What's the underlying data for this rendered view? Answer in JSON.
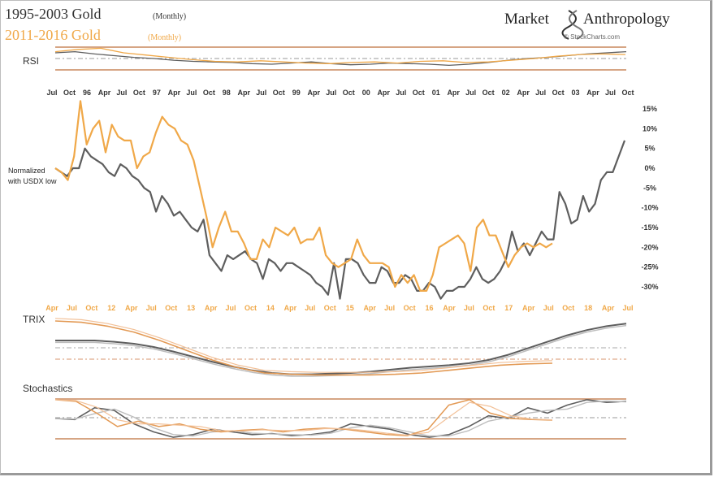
{
  "header": {
    "title_1": "1995-2003 Gold",
    "title_1_suffix": "(Monthly)",
    "title_2": "2011-2016  Gold",
    "title_2_suffix": "(Monthly)",
    "brand": "Market",
    "brand_2": "Anthropology",
    "credit": "© StockCharts.com"
  },
  "colors": {
    "gold": "#f0a848",
    "gray": "#5e5e5e",
    "light_gray": "#bdbdbd",
    "band": "#c8875c",
    "label": "#333333"
  },
  "chart_data": [
    {
      "type": "line",
      "panel": "RSI",
      "title": "RSI",
      "series": [
        {
          "name": "1995-2003 Gold",
          "values": [
            60,
            62,
            58,
            55,
            52,
            50,
            47,
            45,
            44,
            43,
            41,
            40,
            42,
            44,
            41,
            39,
            40,
            42,
            41,
            40,
            38,
            40,
            43,
            47,
            50,
            52,
            55,
            58,
            60,
            62
          ]
        },
        {
          "name": "2011-2016 Gold",
          "values": [
            62,
            66,
            68,
            60,
            56,
            52,
            48,
            45,
            44,
            46,
            44,
            42,
            41,
            43,
            44,
            42,
            45,
            46,
            43,
            44,
            47,
            50,
            54,
            57,
            58,
            57
          ]
        }
      ]
    },
    {
      "type": "line",
      "panel": "main",
      "title": "",
      "annotations": [
        "Normalized",
        "with USDX low"
      ],
      "x_top_ticks": [
        "Jul",
        "Oct",
        "96",
        "Apr",
        "Jul",
        "Oct",
        "97",
        "Apr",
        "Jul",
        "Oct",
        "98",
        "Apr",
        "Jul",
        "Oct",
        "99",
        "Apr",
        "Jul",
        "Oct",
        "00",
        "Apr",
        "Jul",
        "Oct",
        "01",
        "Apr",
        "Jul",
        "Oct",
        "02",
        "Apr",
        "Jul",
        "Oct",
        "03",
        "Apr",
        "Jul",
        "Oct"
      ],
      "x_bottom_ticks": [
        "Apr",
        "Jul",
        "Oct",
        "12",
        "Apr",
        "Jul",
        "Oct",
        "13",
        "Apr",
        "Jul",
        "Oct",
        "14",
        "Apr",
        "Jul",
        "Oct",
        "15",
        "Apr",
        "Jul",
        "Oct",
        "16",
        "Apr",
        "Jul",
        "Oct",
        "17",
        "Apr",
        "Jul",
        "Oct",
        "18",
        "Apr",
        "Jul"
      ],
      "y_ticks": [
        "15%",
        "10%",
        "5%",
        "0%",
        "-5%",
        "-10%",
        "-15%",
        "-20%",
        "-25%",
        "-30%"
      ],
      "ylim": [
        -32,
        16
      ],
      "series": [
        {
          "name": "1995-2003 Gold",
          "values": [
            0,
            -1,
            -2,
            0,
            0,
            5,
            3,
            2,
            1,
            -1,
            -2,
            1,
            0,
            -2,
            -3,
            -5,
            -6,
            -11,
            -7,
            -9,
            -12,
            -11,
            -13,
            -15,
            -16,
            -13,
            -22,
            -24,
            -26,
            -22,
            -23,
            -22,
            -21,
            -23,
            -24,
            -28,
            -23,
            -24,
            -26,
            -24,
            -24,
            -25,
            -26,
            -27,
            -29,
            -30,
            -32,
            -24,
            -33,
            -23,
            -23,
            -24,
            -27,
            -29,
            -29,
            -25,
            -26,
            -29,
            -29,
            -27,
            -28,
            -31,
            -31,
            -29,
            -30,
            -33,
            -31,
            -31,
            -30,
            -30,
            -28,
            -25,
            -28,
            -29,
            -28,
            -26,
            -23,
            -16,
            -21,
            -19,
            -22,
            -19,
            -16,
            -18,
            -18,
            -6,
            -9,
            -14,
            -13,
            -7,
            -11,
            -9,
            -3,
            -1,
            -1,
            3,
            7
          ]
        },
        {
          "name": "2011-2016 Gold",
          "values": [
            0,
            -1,
            -3,
            3,
            17,
            6,
            10,
            12,
            4,
            11,
            8,
            7,
            7,
            0,
            3,
            4,
            9,
            13,
            11,
            10,
            7,
            6,
            2,
            -5,
            -12,
            -20,
            -15,
            -11,
            -16,
            -16,
            -19,
            -23,
            -23,
            -18,
            -20,
            -15,
            -16,
            -17,
            -15,
            -19,
            -18,
            -18,
            -15,
            -22,
            -24,
            -25,
            -24,
            -23,
            -18,
            -22,
            -24,
            -24,
            -24,
            -25,
            -30,
            -27,
            -29,
            -27,
            -31,
            -31,
            -27,
            -20,
            -19,
            -18,
            -17,
            -19,
            -26,
            -15,
            -13,
            -17,
            -17,
            -21,
            -25,
            -22,
            -20,
            -19,
            -20,
            -19,
            -20,
            -19
          ]
        }
      ]
    },
    {
      "type": "line",
      "panel": "TRIX",
      "title": "TRIX",
      "series": [
        {
          "name": "1995-2003 Gold",
          "values": [
            0.5,
            0.5,
            0.5,
            0.48,
            0.45,
            0.4,
            0.33,
            0.25,
            0.17,
            0.1,
            0.04,
            0.0,
            -0.02,
            -0.02,
            -0.01,
            0.0,
            0.02,
            0.05,
            0.08,
            0.1,
            0.12,
            0.15,
            0.2,
            0.28,
            0.38,
            0.48,
            0.58,
            0.66,
            0.72,
            0.76
          ]
        },
        {
          "name": "2011-2016 Gold",
          "values": [
            0.8,
            0.78,
            0.72,
            0.63,
            0.5,
            0.35,
            0.2,
            0.08,
            0.0,
            -0.02,
            -0.03,
            -0.03,
            -0.03,
            -0.02,
            0.0,
            0.04,
            0.08,
            0.12,
            0.14,
            0.15
          ]
        }
      ]
    },
    {
      "type": "line",
      "panel": "Stochastics",
      "title": "Stochastics",
      "series": [
        {
          "name": "1995-2003 Gold",
          "values": [
            50,
            48,
            70,
            65,
            40,
            25,
            15,
            20,
            30,
            25,
            20,
            22,
            18,
            20,
            25,
            40,
            35,
            30,
            20,
            15,
            20,
            35,
            55,
            50,
            70,
            60,
            75,
            85,
            80,
            82
          ]
        },
        {
          "name": "2011-2016 Gold",
          "values": [
            85,
            82,
            60,
            35,
            45,
            35,
            40,
            30,
            25,
            28,
            30,
            25,
            30,
            32,
            30,
            25,
            20,
            18,
            30,
            75,
            85,
            60,
            50,
            48,
            47
          ]
        }
      ]
    }
  ]
}
